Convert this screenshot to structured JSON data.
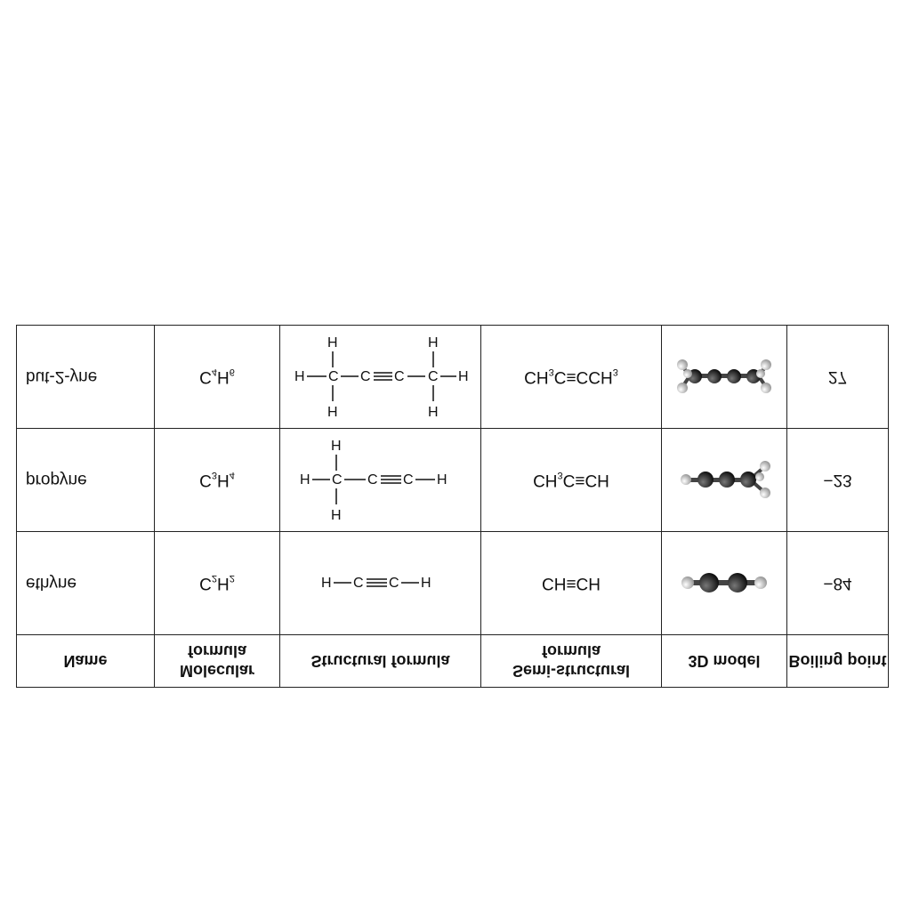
{
  "headers": {
    "name": "Name",
    "molecular_formula": "Molecular formula",
    "structural_formula": "Structural formula",
    "semi_structural_formula": "Semi-structural formula",
    "model_3d": "3D model",
    "boiling_point": "Boiling point"
  },
  "rows": [
    {
      "name": "ethyne",
      "molecular": {
        "c": "C",
        "c_n": "2",
        "h": "H",
        "h_n": "2"
      },
      "semi": "CH≡CH",
      "boiling_point": "−84",
      "structural_icon": "ethyne-structure",
      "model_icon": "ethyne-ball-and-stick"
    },
    {
      "name": "propyne",
      "molecular": {
        "c": "C",
        "c_n": "3",
        "h": "H",
        "h_n": "4"
      },
      "semi_parts": {
        "a": "CH",
        "a_n": "3",
        "b": "C≡CH"
      },
      "boiling_point": "−23",
      "structural_icon": "propyne-structure",
      "model_icon": "propyne-ball-and-stick"
    },
    {
      "name": "but-2-yne",
      "molecular": {
        "c": "C",
        "c_n": "4",
        "h": "H",
        "h_n": "6"
      },
      "semi_parts": {
        "a": "CH",
        "a_n": "3",
        "b": "C≡CCH",
        "b_n": "3"
      },
      "boiling_point": "27",
      "structural_icon": "but-2-yne-structure",
      "model_icon": "but-2-yne-ball-and-stick"
    }
  ],
  "atom_labels": {
    "carbon": "C",
    "hydrogen": "H"
  },
  "colors": {
    "carbon": "#2b2b2b",
    "hydrogen": "#e6e6e6",
    "grid": "#222222"
  }
}
